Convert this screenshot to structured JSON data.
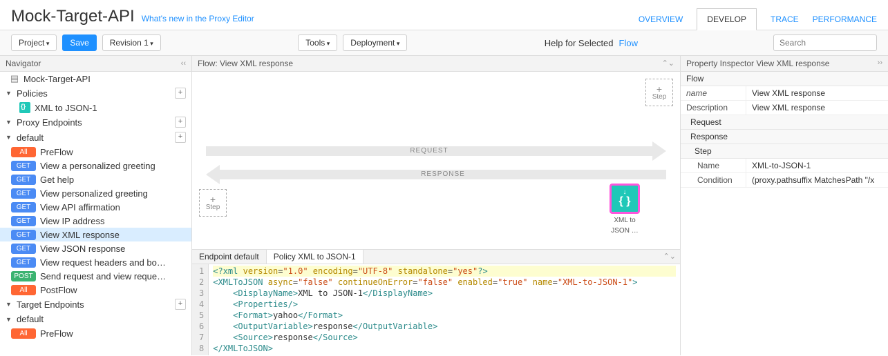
{
  "header": {
    "title": "Mock-Target-API",
    "whats_new": "What's new in the Proxy Editor",
    "tabs": {
      "overview": "OVERVIEW",
      "develop": "DEVELOP",
      "trace": "TRACE",
      "performance": "PERFORMANCE"
    }
  },
  "toolbar": {
    "project": "Project",
    "save": "Save",
    "revision": "Revision 1",
    "tools": "Tools",
    "deployment": "Deployment",
    "help_label": "Help for Selected",
    "help_link": "Flow",
    "search_placeholder": "Search"
  },
  "nav": {
    "title": "Navigator",
    "root": "Mock-Target-API",
    "policies": "Policies",
    "policy_item": "XML to JSON-1",
    "proxy_endpoints": "Proxy Endpoints",
    "default": "default",
    "flows": [
      {
        "badge": "All",
        "badge_class": "all",
        "label": "PreFlow"
      },
      {
        "badge": "GET",
        "badge_class": "get",
        "label": "View a personalized greeting"
      },
      {
        "badge": "GET",
        "badge_class": "get",
        "label": "Get help"
      },
      {
        "badge": "GET",
        "badge_class": "get",
        "label": "View personalized greeting"
      },
      {
        "badge": "GET",
        "badge_class": "get",
        "label": "View API affirmation"
      },
      {
        "badge": "GET",
        "badge_class": "get",
        "label": "View IP address"
      },
      {
        "badge": "GET",
        "badge_class": "get",
        "label": "View XML response"
      },
      {
        "badge": "GET",
        "badge_class": "get",
        "label": "View JSON response"
      },
      {
        "badge": "GET",
        "badge_class": "get",
        "label": "View request headers and bo…"
      },
      {
        "badge": "POST",
        "badge_class": "post",
        "label": "Send request and view reque…"
      },
      {
        "badge": "All",
        "badge_class": "all",
        "label": "PostFlow"
      }
    ],
    "target_endpoints": "Target Endpoints",
    "target_default": "default",
    "target_preflow": {
      "badge": "All",
      "badge_class": "all",
      "label": "PreFlow"
    }
  },
  "flow": {
    "title": "Flow: View XML response",
    "step": "Step",
    "request": "REQUEST",
    "response": "RESPONSE",
    "policy_caption1": "XML to",
    "policy_caption2": "JSON …"
  },
  "code": {
    "tab1": "Endpoint default",
    "tab2": "Policy XML to JSON-1"
  },
  "props": {
    "title": "Property Inspector  View XML response",
    "flow": "Flow",
    "name_k": "name",
    "name_v": "View XML response",
    "desc_k": "Description",
    "desc_v": "View XML response",
    "request": "Request",
    "response": "Response",
    "step": "Step",
    "pname_k": "Name",
    "pname_v": "XML-to-JSON-1",
    "cond_k": "Condition",
    "cond_v": "(proxy.pathsuffix MatchesPath \"/x"
  }
}
